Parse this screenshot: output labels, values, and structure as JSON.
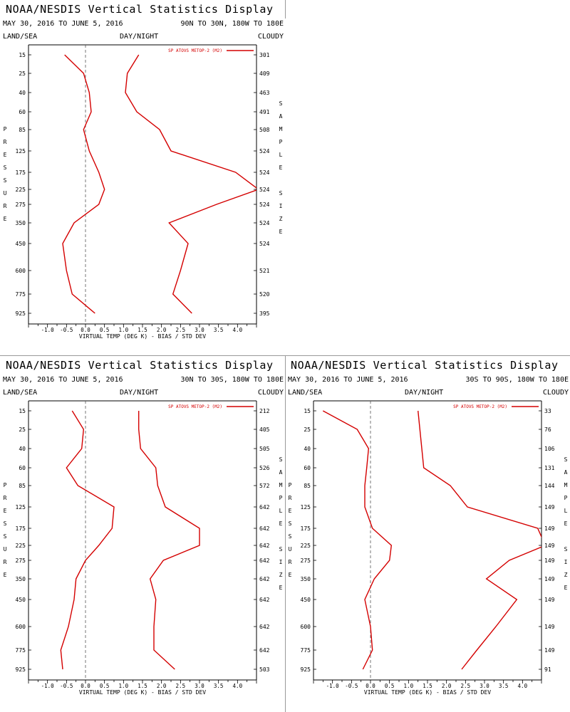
{
  "panels": [
    {
      "header": {
        "title": "NOAA/NESDIS Vertical Statistics Display",
        "dates": "MAY 30, 2016 TO JUNE 5, 2016",
        "region": "90N TO 30N, 180W TO 180E",
        "land_sea": "LAND/SEA",
        "day_night": "DAY/NIGHT",
        "cloudy": "CLOUDY"
      },
      "chart_data": {
        "type": "line",
        "xlabel": "VIRTUAL TEMP (DEG K) - BIAS / STD DEV",
        "ylabel": "PRESSURE",
        "y2label": "SAMPLE SIZE",
        "legend": "SP ATOVS METOP-2 (M2)",
        "legend_position": "top-right",
        "color": "#d40000",
        "xlim": [
          -1.5,
          4.5
        ],
        "xticks": [
          "-1.0",
          "-0.5",
          "0.0",
          "0.5",
          "1.0",
          "1.5",
          "2.0",
          "2.5",
          "3.0",
          "3.5",
          "4.0"
        ],
        "pressure_levels": [
          "15",
          "25",
          "40",
          "60",
          "85",
          "125",
          "175",
          "225",
          "275",
          "350",
          "450",
          "600",
          "775",
          "925"
        ],
        "sample_size": [
          "301",
          "409",
          "463",
          "491",
          "508",
          "524",
          "524",
          "524",
          "524",
          "524",
          "524",
          "521",
          "520",
          "395"
        ],
        "series": [
          {
            "values": [
              -0.55,
              -0.05,
              0.1,
              0.15,
              -0.05,
              0.1,
              0.35,
              0.5,
              0.35,
              -0.3,
              -0.6,
              -0.5,
              -0.35,
              0.25
            ]
          },
          {
            "values": [
              1.4,
              1.1,
              1.05,
              1.35,
              1.95,
              2.25,
              3.95,
              4.55,
              3.45,
              2.2,
              2.7,
              2.5,
              2.3,
              2.8
            ]
          }
        ]
      }
    },
    {
      "header": {
        "title": "NOAA/NESDIS Vertical Statistics Display",
        "dates": "MAY 30, 2016 TO JUNE 5, 2016",
        "region": "30N TO 30S, 180W TO 180E",
        "land_sea": "LAND/SEA",
        "day_night": "DAY/NIGHT",
        "cloudy": "CLOUDY"
      },
      "chart_data": {
        "type": "line",
        "xlabel": "VIRTUAL TEMP (DEG K) - BIAS / STD DEV",
        "ylabel": "PRESSURE",
        "y2label": "SAMPLE SIZE",
        "legend": "SP ATOVS METOP-2 (M2)",
        "legend_position": "top-right",
        "color": "#d40000",
        "xlim": [
          -1.5,
          4.5
        ],
        "xticks": [
          "-1.0",
          "-0.5",
          "0.0",
          "0.5",
          "1.0",
          "1.5",
          "2.0",
          "2.5",
          "3.0",
          "3.5",
          "4.0"
        ],
        "pressure_levels": [
          "15",
          "25",
          "40",
          "60",
          "85",
          "125",
          "175",
          "225",
          "275",
          "350",
          "450",
          "600",
          "775",
          "925"
        ],
        "sample_size": [
          "212",
          "405",
          "505",
          "526",
          "572",
          "642",
          "642",
          "642",
          "642",
          "642",
          "642",
          "642",
          "642",
          "503"
        ],
        "series": [
          {
            "values": [
              -0.35,
              -0.05,
              -0.1,
              -0.5,
              -0.2,
              0.75,
              0.7,
              0.35,
              0.0,
              -0.25,
              -0.3,
              -0.45,
              -0.65,
              -0.6
            ]
          },
          {
            "values": [
              1.4,
              1.4,
              1.45,
              1.85,
              1.9,
              2.1,
              3.0,
              3.0,
              2.05,
              1.7,
              1.85,
              1.8,
              1.8,
              2.35
            ]
          }
        ]
      }
    },
    {
      "header": {
        "title": "NOAA/NESDIS Vertical Statistics Display",
        "dates": "MAY 30, 2016 TO JUNE 5, 2016",
        "region": "30S TO 90S, 180W TO 180E",
        "land_sea": "LAND/SEA",
        "day_night": "DAY/NIGHT",
        "cloudy": "CLOUDY"
      },
      "chart_data": {
        "type": "line",
        "xlabel": "VIRTUAL TEMP (DEG K) - BIAS / STD DEV",
        "ylabel": "PRESSURE",
        "y2label": "SAMPLE SIZE",
        "legend": "SP ATOVS METOP-2 (M2)",
        "legend_position": "top-right",
        "color": "#d40000",
        "xlim": [
          -1.5,
          4.5
        ],
        "xticks": [
          "-1.0",
          "-0.5",
          "0.0",
          "0.5",
          "1.0",
          "1.5",
          "2.0",
          "2.5",
          "3.0",
          "3.5",
          "4.0"
        ],
        "pressure_levels": [
          "15",
          "25",
          "40",
          "60",
          "85",
          "125",
          "175",
          "225",
          "275",
          "350",
          "450",
          "600",
          "775",
          "925"
        ],
        "sample_size": [
          "33",
          "76",
          "106",
          "131",
          "144",
          "149",
          "149",
          "149",
          "149",
          "149",
          "149",
          "149",
          "149",
          "91"
        ],
        "series": [
          {
            "values": [
              -1.25,
              -0.35,
              -0.05,
              -0.1,
              -0.15,
              -0.15,
              0.05,
              0.55,
              0.5,
              0.1,
              -0.15,
              0.0,
              0.05,
              -0.2
            ]
          },
          {
            "values": [
              1.25,
              1.3,
              1.35,
              1.4,
              2.1,
              2.55,
              4.4,
              4.6,
              3.65,
              3.05,
              3.85,
              3.3,
              2.8,
              2.4
            ]
          }
        ]
      }
    }
  ]
}
